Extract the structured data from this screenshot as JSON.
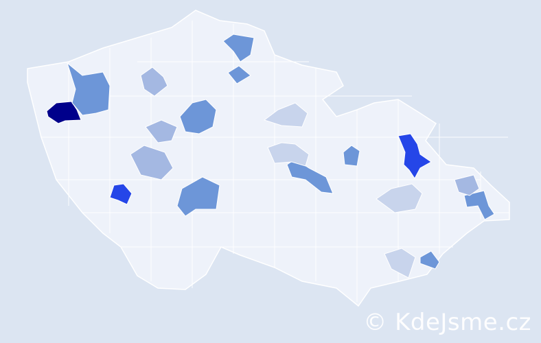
{
  "map": {
    "colors": {
      "background": "#dce5f2",
      "land": "#eef2fa",
      "border": "#ffffff",
      "level1": "#c8d4ec",
      "level2": "#a4b8e2",
      "level3": "#6d96d8",
      "level4": "#2546e8",
      "level5": "#00008b"
    },
    "highlighted_regions": [
      {
        "level": 5
      },
      {
        "level": 4
      },
      {
        "level": 4
      },
      {
        "level": 3
      },
      {
        "level": 3
      },
      {
        "level": 3
      },
      {
        "level": 3
      },
      {
        "level": 3
      },
      {
        "level": 3
      },
      {
        "level": 3
      },
      {
        "level": 3
      },
      {
        "level": 2
      },
      {
        "level": 2
      },
      {
        "level": 2
      },
      {
        "level": 2
      },
      {
        "level": 1
      },
      {
        "level": 1
      },
      {
        "level": 1
      },
      {
        "level": 1
      },
      {
        "level": 1
      }
    ]
  },
  "watermark": "© KdeJsme.cz"
}
